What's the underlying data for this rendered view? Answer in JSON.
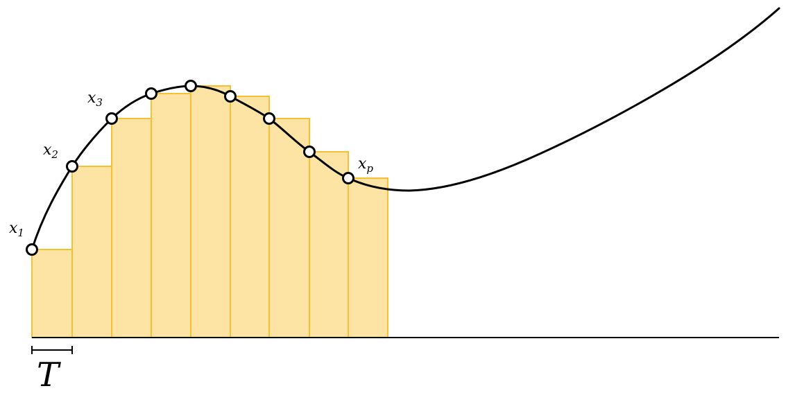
{
  "colors": {
    "bar_fill": "#fde4a4",
    "bar_stroke": "#f7c033",
    "curve": "#000000",
    "point_fill": "#ffffff"
  },
  "samples": {
    "count": 9,
    "labels": [
      {
        "base": "x",
        "sub": "1"
      },
      {
        "base": "x",
        "sub": "2"
      },
      {
        "base": "x",
        "sub": "3"
      },
      {
        "base": "x",
        "sub": "p"
      }
    ]
  },
  "period": {
    "label": "T"
  }
}
